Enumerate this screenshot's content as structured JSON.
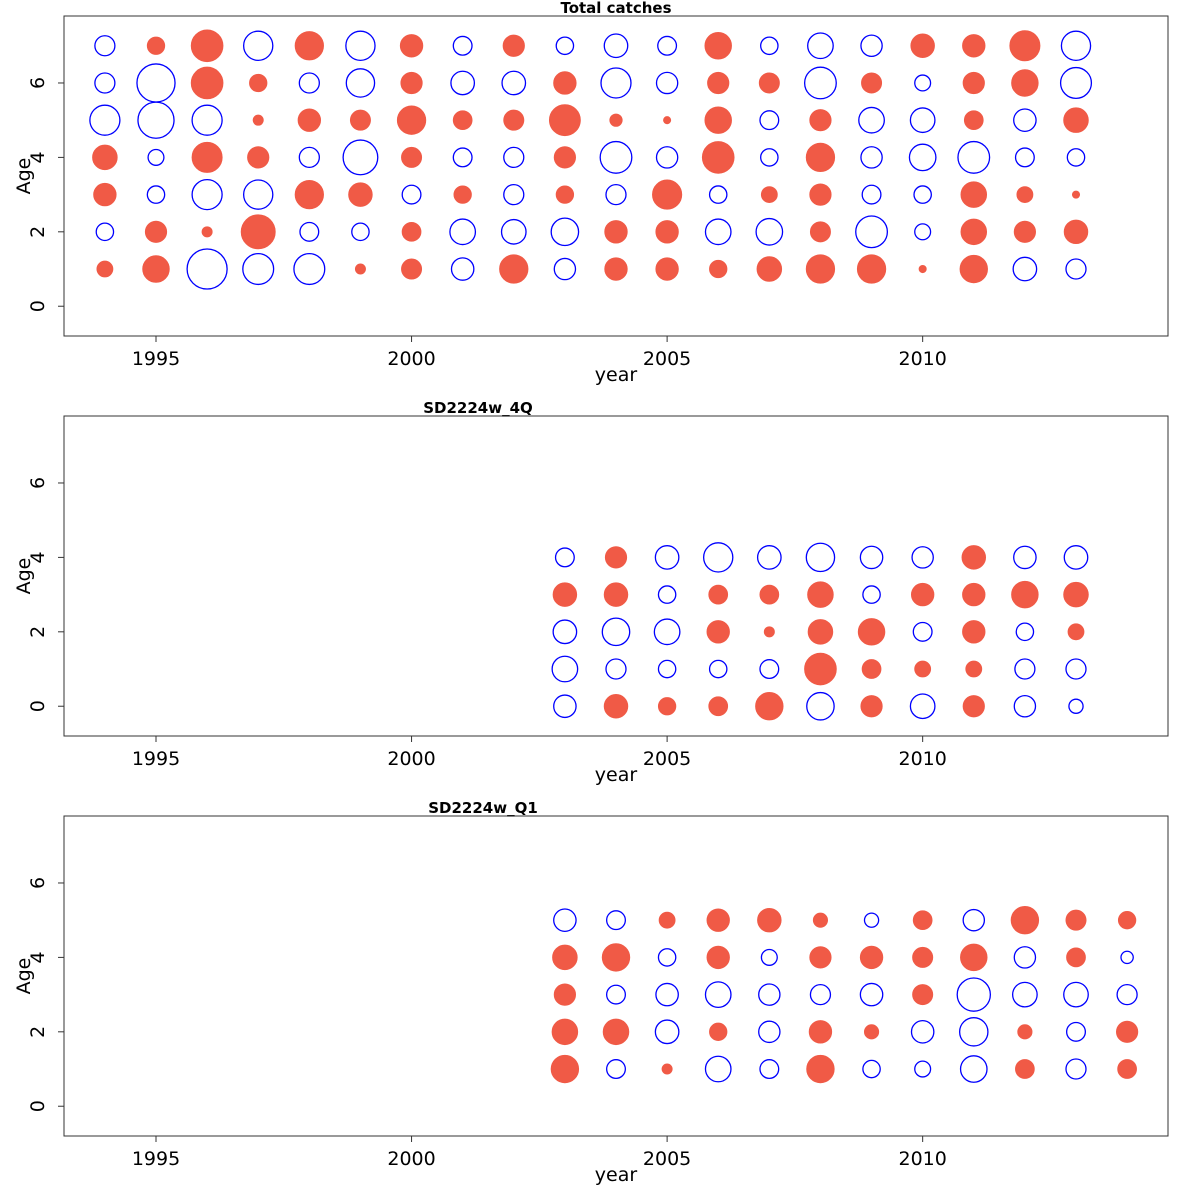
{
  "chart_data": [
    {
      "type": "bubble",
      "title": "Total catches",
      "xlabel": "year",
      "ylabel": "Age",
      "xlim": [
        1993.2,
        2014.8
      ],
      "ylim": [
        -0.8,
        7.8
      ],
      "xticks": [
        1995,
        2000,
        2005,
        2010
      ],
      "yticks": [
        0,
        2,
        4,
        6
      ],
      "positive_color": "#F05A46",
      "negative_color": "#0000FF",
      "x": [
        1994,
        1995,
        1996,
        1997,
        1998,
        1999,
        2000,
        2001,
        2002,
        2003,
        2004,
        2005,
        2006,
        2007,
        2008,
        2009,
        2010,
        2011,
        2012,
        2013
      ],
      "ages": [
        1,
        2,
        3,
        4,
        5,
        6,
        7
      ],
      "residuals": [
        [
          0.25,
          -0.3,
          0.5,
          0.6,
          -0.9,
          -0.4,
          -0.4
        ],
        [
          0.7,
          0.45,
          -0.3,
          -0.25,
          -1.3,
          -1.45,
          0.3
        ],
        [
          -1.6,
          0.1,
          -0.9,
          0.9,
          -0.9,
          1.0,
          1.0
        ],
        [
          -0.95,
          1.15,
          -0.85,
          0.45,
          0.1,
          0.3,
          -0.85
        ],
        [
          -0.95,
          -0.35,
          0.8,
          -0.4,
          0.5,
          -0.4,
          0.8
        ],
        [
          0.1,
          -0.3,
          0.55,
          -1.2,
          0.4,
          -0.8,
          -0.85
        ],
        [
          0.4,
          0.35,
          -0.35,
          0.4,
          0.8,
          0.45,
          0.5
        ],
        [
          -0.5,
          -0.65,
          0.3,
          -0.35,
          0.35,
          -0.55,
          -0.35
        ],
        [
          0.8,
          -0.6,
          -0.4,
          -0.4,
          0.4,
          -0.55,
          0.45
        ],
        [
          -0.45,
          -0.75,
          0.3,
          0.45,
          0.95,
          0.5,
          -0.3
        ],
        [
          0.5,
          0.5,
          -0.4,
          -1.0,
          0.15,
          -0.9,
          -0.55
        ],
        [
          0.5,
          0.5,
          0.85,
          -0.45,
          0.05,
          -0.45,
          -0.35
        ],
        [
          0.3,
          -0.65,
          -0.3,
          1.0,
          0.7,
          0.45,
          0.7
        ],
        [
          0.6,
          -0.7,
          0.25,
          -0.3,
          -0.35,
          0.4,
          -0.3
        ],
        [
          0.8,
          0.4,
          0.45,
          0.8,
          0.45,
          -1.0,
          -0.65
        ],
        [
          0.8,
          -1.0,
          -0.35,
          -0.45,
          -0.65,
          0.4,
          -0.45
        ],
        [
          0.05,
          -0.25,
          -0.3,
          -0.7,
          -0.6,
          -0.25,
          0.55
        ],
        [
          0.75,
          0.65,
          0.65,
          -1.0,
          0.35,
          0.45,
          0.5
        ],
        [
          -0.55,
          0.45,
          0.25,
          -0.35,
          -0.5,
          0.7,
          0.9
        ],
        [
          -0.4,
          0.55,
          0.05,
          -0.3,
          0.6,
          -0.95,
          -0.85
        ]
      ]
    },
    {
      "type": "bubble",
      "title": "SD2224w_4Q",
      "xlabel": "year",
      "ylabel": "Age",
      "xlim": [
        1993.2,
        2014.8
      ],
      "ylim": [
        -0.8,
        7.8
      ],
      "xticks": [
        1995,
        2000,
        2005,
        2010
      ],
      "yticks": [
        0,
        2,
        4,
        6
      ],
      "positive_color": "#F05A46",
      "negative_color": "#0000FF",
      "x": [
        2003,
        2004,
        2005,
        2006,
        2007,
        2008,
        2009,
        2010,
        2011,
        2012,
        2013
      ],
      "ages": [
        0,
        1,
        2,
        3,
        4
      ],
      "residuals": [
        [
          -0.5,
          -0.65,
          -0.55,
          0.55,
          -0.35
        ],
        [
          0.55,
          -0.4,
          -0.75,
          0.55,
          0.45
        ],
        [
          0.3,
          -0.3,
          -0.65,
          -0.3,
          -0.55
        ],
        [
          0.35,
          -0.3,
          0.5,
          0.35,
          -0.85
        ],
        [
          0.75,
          -0.35,
          0.1,
          0.35,
          -0.55
        ],
        [
          -0.75,
          1.0,
          0.6,
          0.65,
          -0.8
        ],
        [
          0.45,
          0.35,
          0.7,
          -0.3,
          -0.5
        ],
        [
          -0.6,
          0.25,
          -0.35,
          0.5,
          -0.45
        ],
        [
          0.45,
          0.25,
          0.5,
          0.5,
          0.55
        ],
        [
          -0.45,
          -0.4,
          -0.3,
          0.7,
          -0.5
        ],
        [
          -0.2,
          -0.4,
          0.25,
          0.6,
          -0.55
        ]
      ]
    },
    {
      "type": "bubble",
      "title": "SD2224w_Q1",
      "xlabel": "year",
      "ylabel": "Age",
      "xlim": [
        1993.2,
        2014.8
      ],
      "ylim": [
        -0.8,
        7.8
      ],
      "xticks": [
        1995,
        2000,
        2005,
        2010
      ],
      "yticks": [
        0,
        2,
        4,
        6
      ],
      "positive_color": "#F05A46",
      "negative_color": "#0000FF",
      "x": [
        2003,
        2004,
        2005,
        2006,
        2007,
        2008,
        2009,
        2010,
        2011,
        2012,
        2013,
        2014
      ],
      "ages": [
        1,
        2,
        3,
        4,
        5
      ],
      "residuals": [
        [
          0.75,
          0.65,
          0.45,
          0.6,
          -0.5
        ],
        [
          -0.35,
          0.65,
          -0.35,
          0.75,
          -0.35
        ],
        [
          0.1,
          -0.55,
          -0.5,
          -0.3,
          0.25
        ],
        [
          -0.65,
          0.3,
          -0.65,
          0.5,
          0.5
        ],
        [
          -0.35,
          -0.45,
          -0.45,
          -0.25,
          0.55
        ],
        [
          0.75,
          0.5,
          -0.4,
          0.45,
          0.2
        ],
        [
          -0.3,
          0.2,
          -0.5,
          0.5,
          -0.2
        ],
        [
          -0.25,
          -0.5,
          0.4,
          0.4,
          0.35
        ],
        [
          -0.7,
          -0.8,
          -1.1,
          0.7,
          -0.45
        ],
        [
          0.35,
          0.2,
          -0.6,
          -0.45,
          0.75
        ],
        [
          -0.4,
          -0.35,
          -0.6,
          0.35,
          0.4
        ],
        [
          0.35,
          0.45,
          -0.4,
          -0.15,
          0.3
        ]
      ]
    }
  ]
}
